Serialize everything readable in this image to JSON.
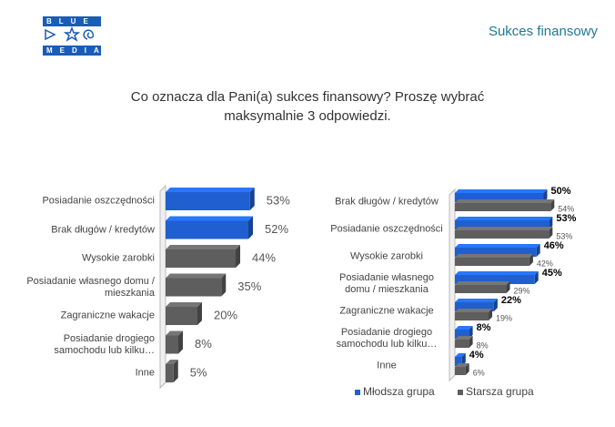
{
  "header": {
    "logo_top": "BLUE",
    "logo_bottom": "MEDIA",
    "title": "Sukces finansowy"
  },
  "question": "Co oznacza dla Pani(a) sukces finansowy? Proszę wybrać maksymalnie 3 odpowiedzi.",
  "chart_data": [
    {
      "type": "bar",
      "orientation": "horizontal",
      "categories": [
        "Posiadanie oszczędności",
        "Brak długów / kredytów",
        "Wysokie zarobki",
        "Posiadanie własnego domu / mieszkania",
        "Zagraniczne wakacje",
        "Posiadanie drogiego samochodu lub kilku…",
        "Inne"
      ],
      "values": [
        53,
        52,
        44,
        35,
        20,
        8,
        5
      ],
      "value_labels": [
        "53%",
        "52%",
        "44%",
        "35%",
        "20%",
        "8%",
        "5%"
      ],
      "colors": [
        "#1f5fcf",
        "#1f5fcf",
        "#5e5e5e",
        "#5e5e5e",
        "#5e5e5e",
        "#5e5e5e",
        "#5e5e5e"
      ]
    },
    {
      "type": "bar",
      "orientation": "horizontal",
      "categories": [
        "Brak długów / kredytów",
        "Posiadanie oszczędności",
        "Wysokie zarobki",
        "Posiadanie własnego domu / mieszkania",
        "Zagraniczne wakacje",
        "Posiadanie drogiego samochodu lub kilku…",
        "Inne"
      ],
      "series": [
        {
          "name": "Młodsza grupa",
          "color": "#1f5fcf",
          "values": [
            50,
            53,
            46,
            45,
            22,
            8,
            4
          ],
          "value_labels": [
            "50%",
            "53%",
            "46%",
            "45%",
            "22%",
            "8%",
            "4%"
          ]
        },
        {
          "name": "Starsza grupa",
          "color": "#5e5e5e",
          "values": [
            54,
            53,
            42,
            29,
            19,
            8,
            6
          ],
          "value_labels": [
            "54%",
            "53%",
            "42%",
            "29%",
            "19%",
            "8%",
            "6%"
          ]
        }
      ]
    }
  ]
}
